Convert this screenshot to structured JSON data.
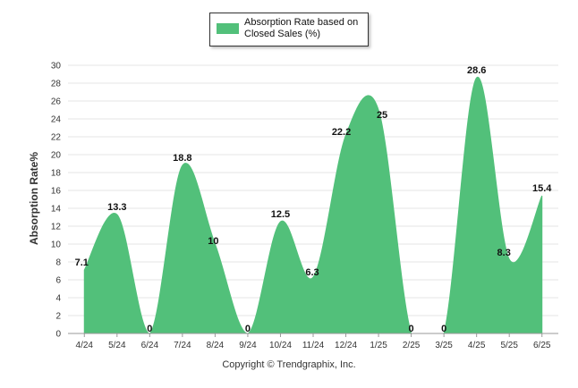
{
  "chart_data": {
    "type": "area",
    "legend": {
      "label": "Absorption Rate based on Closed Sales (%)",
      "placement": "top-center"
    },
    "ylabel": "Absorption Rate%",
    "xlabel": "",
    "ylim": [
      0,
      30
    ],
    "y_ticks": [
      0,
      2,
      4,
      6,
      8,
      10,
      12,
      14,
      16,
      18,
      20,
      22,
      24,
      26,
      28,
      30
    ],
    "grid": true,
    "categories": [
      "4/24",
      "5/24",
      "6/24",
      "7/24",
      "8/24",
      "9/24",
      "10/24",
      "11/24",
      "12/24",
      "1/25",
      "2/25",
      "3/25",
      "4/25",
      "5/25",
      "6/25"
    ],
    "series": [
      {
        "name": "Absorption Rate based on Closed Sales (%)",
        "color": "#52c07a",
        "values": [
          7.1,
          13.3,
          0,
          18.8,
          10,
          0,
          12.5,
          6.3,
          22.2,
          25,
          0,
          0,
          28.6,
          8.3,
          15.4
        ],
        "labels": [
          "7.1",
          "13.3",
          "0",
          "18.8",
          "10",
          "0",
          "12.5",
          "6.3",
          "22.2",
          "25",
          "0",
          "0",
          "28.6",
          "8.3",
          "15.4"
        ]
      }
    ]
  },
  "footer": {
    "copyright": "Copyright © Trendgraphix, Inc."
  }
}
